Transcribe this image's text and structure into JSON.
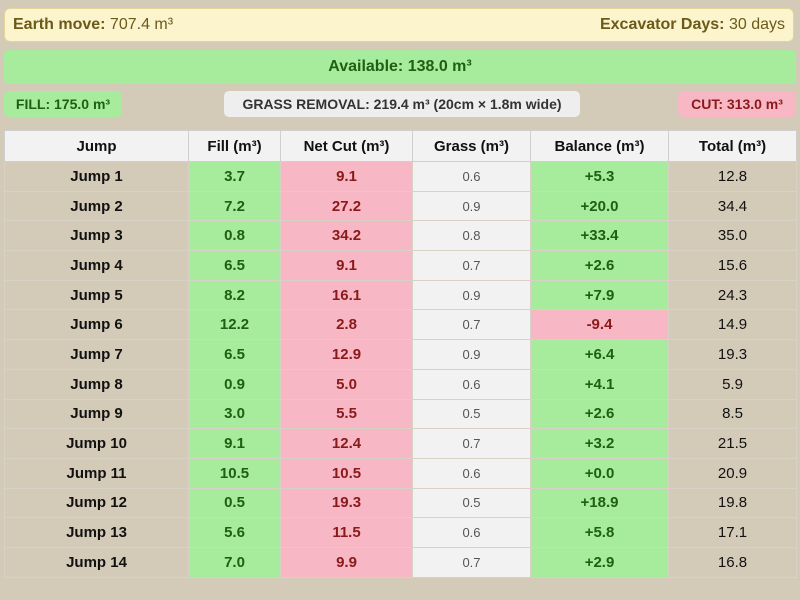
{
  "header": {
    "earth_move_label": "Earth move:",
    "earth_move_value": "707.4 m³",
    "excavator_label": "Excavator Days:",
    "excavator_value": "30 days"
  },
  "summary": {
    "available": "Available: 138.0 m³",
    "fill": "FILL: 175.0 m³",
    "grass": "GRASS REMOVAL: 219.4 m³ (20cm × 1.8m wide)",
    "cut": "CUT: 313.0 m³"
  },
  "colors": {
    "green": "#a6ec9c",
    "red": "#f7b7c4",
    "grey": "#f2f2f2",
    "background": "#d4cab8"
  },
  "table": {
    "columns": [
      "Jump",
      "Fill (m³)",
      "Net Cut (m³)",
      "Grass (m³)",
      "Balance (m³)",
      "Total (m³)"
    ],
    "rows": [
      {
        "jump": "Jump 1",
        "fill": "3.7",
        "cut": "9.1",
        "grass": "0.6",
        "balance": "+5.3",
        "total": "12.8"
      },
      {
        "jump": "Jump 2",
        "fill": "7.2",
        "cut": "27.2",
        "grass": "0.9",
        "balance": "+20.0",
        "total": "34.4"
      },
      {
        "jump": "Jump 3",
        "fill": "0.8",
        "cut": "34.2",
        "grass": "0.8",
        "balance": "+33.4",
        "total": "35.0"
      },
      {
        "jump": "Jump 4",
        "fill": "6.5",
        "cut": "9.1",
        "grass": "0.7",
        "balance": "+2.6",
        "total": "15.6"
      },
      {
        "jump": "Jump 5",
        "fill": "8.2",
        "cut": "16.1",
        "grass": "0.9",
        "balance": "+7.9",
        "total": "24.3"
      },
      {
        "jump": "Jump 6",
        "fill": "12.2",
        "cut": "2.8",
        "grass": "0.7",
        "balance": "-9.4",
        "total": "14.9"
      },
      {
        "jump": "Jump 7",
        "fill": "6.5",
        "cut": "12.9",
        "grass": "0.9",
        "balance": "+6.4",
        "total": "19.3"
      },
      {
        "jump": "Jump 8",
        "fill": "0.9",
        "cut": "5.0",
        "grass": "0.6",
        "balance": "+4.1",
        "total": "5.9"
      },
      {
        "jump": "Jump 9",
        "fill": "3.0",
        "cut": "5.5",
        "grass": "0.5",
        "balance": "+2.6",
        "total": "8.5"
      },
      {
        "jump": "Jump 10",
        "fill": "9.1",
        "cut": "12.4",
        "grass": "0.7",
        "balance": "+3.2",
        "total": "21.5"
      },
      {
        "jump": "Jump 11",
        "fill": "10.5",
        "cut": "10.5",
        "grass": "0.6",
        "balance": "+0.0",
        "total": "20.9"
      },
      {
        "jump": "Jump 12",
        "fill": "0.5",
        "cut": "19.3",
        "grass": "0.5",
        "balance": "+18.9",
        "total": "19.8"
      },
      {
        "jump": "Jump 13",
        "fill": "5.6",
        "cut": "11.5",
        "grass": "0.6",
        "balance": "+5.8",
        "total": "17.1"
      },
      {
        "jump": "Jump 14",
        "fill": "7.0",
        "cut": "9.9",
        "grass": "0.7",
        "balance": "+2.9",
        "total": "16.8"
      }
    ]
  }
}
